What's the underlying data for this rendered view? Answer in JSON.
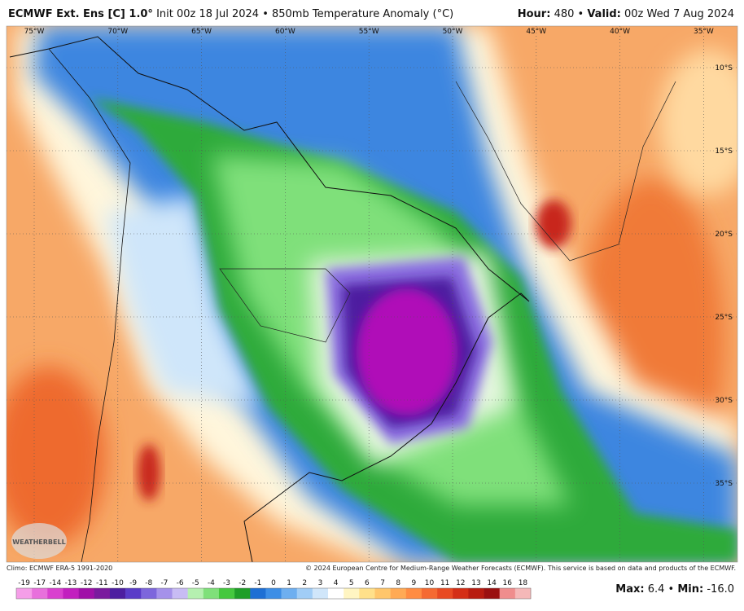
{
  "header": {
    "model": "ECMWF Ext. Ens [C] 1.0°",
    "description": "Init 00z 18 Jul 2024 • 850mb Temperature Anomaly (°C)",
    "hour_label": "Hour:",
    "hour": "480",
    "valid_label": "Valid:",
    "valid": "00z Wed 7 Aug 2024"
  },
  "map": {
    "longitudes": [
      "75°W",
      "70°W",
      "65°W",
      "60°W",
      "55°W",
      "50°W",
      "45°W",
      "40°W",
      "35°W"
    ],
    "latitudes": [
      "10°S",
      "15°S",
      "20°S",
      "25°S",
      "30°S",
      "35°S"
    ],
    "watermark": "WEATHERBELL"
  },
  "footer": {
    "climo": "Climo: ECMWF ERA-5 1991-2020",
    "copyright": "© 2024 European Centre for Medium-Range Weather Forecasts (ECMWF). This service is based on data and products of the ECMWF.",
    "max_label": "Max:",
    "max": "6.4",
    "min_label": "Min:",
    "min": "-16.0"
  },
  "colorbar": {
    "ticks": [
      -19,
      -17,
      -14,
      -13,
      -12,
      -11,
      -10,
      -9,
      -8,
      -7,
      -6,
      -5,
      -4,
      -3,
      -2,
      -1,
      0,
      1,
      2,
      3,
      4,
      5,
      6,
      7,
      8,
      9,
      10,
      11,
      12,
      13,
      14,
      16,
      18
    ],
    "colors": [
      "#f59ee8",
      "#e870dc",
      "#d940cf",
      "#c21fbf",
      "#a010a8",
      "#7a1a9e",
      "#4d1fa0",
      "#5a3cc8",
      "#7d66dc",
      "#a591ea",
      "#c8bcf4",
      "#b5f0b0",
      "#7fe07a",
      "#45c83e",
      "#1f9e28",
      "#1e6fd4",
      "#3d8ee6",
      "#6eaff0",
      "#a1cdf6",
      "#d0e6fa",
      "#ffffff",
      "#fff5c2",
      "#ffe08a",
      "#ffc66b",
      "#ffaa55",
      "#ff8c42",
      "#f56a32",
      "#e84a22",
      "#d42e16",
      "#b81c10",
      "#9a1010",
      "#ef8d8d",
      "#f5b8b8"
    ]
  }
}
